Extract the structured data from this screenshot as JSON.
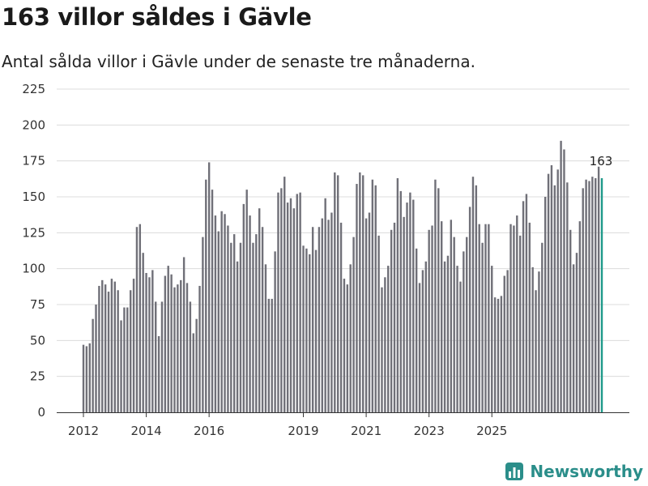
{
  "header": {
    "title": "163 villor såldes i Gävle",
    "subtitle": "Antal sålda villor i Gävle under de senaste tre månaderna."
  },
  "brand": {
    "name": "Newsworthy",
    "icon": "chart-logo-icon",
    "color": "#2b8e8a"
  },
  "colors": {
    "bar": "#707078",
    "latest_bar": "#1f9a8a",
    "grid": "#dcdcdc"
  },
  "chart_data": {
    "type": "bar",
    "title": "163 villor såldes i Gävle",
    "xlabel": "",
    "ylabel": "",
    "ylim": [
      0,
      225
    ],
    "yticks": [
      0,
      25,
      50,
      75,
      100,
      125,
      150,
      175,
      200,
      225
    ],
    "x_tick_labels": [
      {
        "label": "2012",
        "index": 0
      },
      {
        "label": "2014",
        "index": 20
      },
      {
        "label": "2016",
        "index": 40
      },
      {
        "label": "2019",
        "index": 70
      },
      {
        "label": "2021",
        "index": 90
      },
      {
        "label": "2023",
        "index": 110
      },
      {
        "label": "2025",
        "index": 130
      }
    ],
    "values": [
      47,
      46,
      48,
      65,
      75,
      88,
      92,
      89,
      84,
      93,
      91,
      85,
      64,
      73,
      73,
      85,
      93,
      129,
      131,
      111,
      97,
      94,
      99,
      77,
      53,
      77,
      95,
      102,
      96,
      87,
      89,
      92,
      108,
      90,
      77,
      55,
      65,
      88,
      122,
      162,
      174,
      155,
      137,
      126,
      140,
      138,
      130,
      118,
      124,
      105,
      118,
      145,
      155,
      137,
      118,
      124,
      142,
      129,
      103,
      79,
      79,
      112,
      153,
      156,
      164,
      146,
      149,
      142,
      152,
      153,
      116,
      114,
      110,
      129,
      113,
      129,
      135,
      149,
      134,
      139,
      167,
      165,
      132,
      93,
      89,
      103,
      122,
      159,
      167,
      165,
      135,
      139,
      162,
      158,
      123,
      87,
      94,
      102,
      127,
      132,
      163,
      154,
      136,
      146,
      153,
      148,
      114,
      90,
      99,
      105,
      127,
      130,
      162,
      156,
      133,
      105,
      109,
      134,
      122,
      102,
      91,
      112,
      122,
      143,
      164,
      158,
      131,
      118,
      131,
      131,
      102,
      80,
      79,
      81,
      95,
      99,
      131,
      130,
      137,
      123,
      147,
      152,
      132,
      101,
      85,
      98,
      118,
      150,
      166,
      172,
      158,
      169,
      189,
      183,
      160,
      127,
      103,
      111,
      133,
      156,
      162,
      161,
      164,
      163,
      171,
      163
    ],
    "highlight": {
      "index": 165,
      "value": 163,
      "label": "163"
    }
  }
}
